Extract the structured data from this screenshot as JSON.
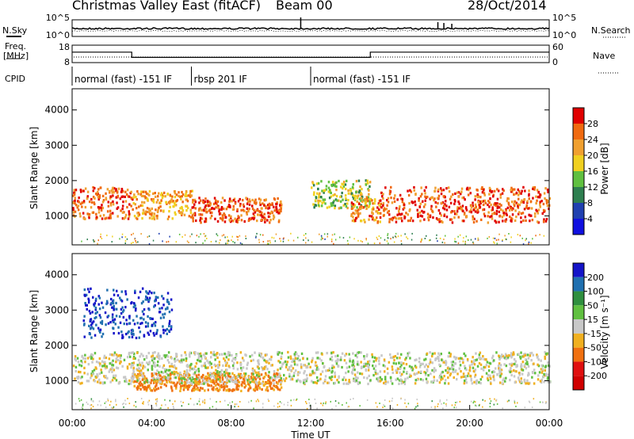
{
  "header": {
    "station": "Christmas Valley East (fitACF)",
    "beam": "Beam 00",
    "date": "28/Oct/2014"
  },
  "noise_panel": {
    "left_label": "N.Sky",
    "right_label": "N.Search",
    "y_ticks_left": [
      "10^5",
      "10^0"
    ],
    "y_ticks_right": [
      "10^5",
      "10^0"
    ]
  },
  "freq_panel": {
    "left_label": "Freq.",
    "left_unit": "[MHz]",
    "right_label": "Nave",
    "y_ticks_left": [
      "18",
      "8"
    ],
    "y_ticks_right": [
      "60",
      "0"
    ]
  },
  "cpid": {
    "label": "CPID",
    "segments": [
      {
        "text": "normal (fast) -151 IF",
        "start_h": 0,
        "end_h": 6
      },
      {
        "text": "rbsp 201 IF",
        "start_h": 6,
        "end_h": 12
      },
      {
        "text": "normal (fast) -151 IF",
        "start_h": 12,
        "end_h": 24
      }
    ]
  },
  "power_panel": {
    "ylabel": "Slant Range [km]",
    "y_ticks": [
      "1000",
      "2000",
      "3000",
      "4000"
    ],
    "colorbar_label": "Power [dB]",
    "colorbar_ticks": [
      "4",
      "8",
      "12",
      "16",
      "20",
      "24",
      "28"
    ],
    "colorbar_colors": [
      "#1010e0",
      "#2040b0",
      "#2e7f50",
      "#60c040",
      "#f0d020",
      "#f0a030",
      "#f06a10",
      "#e00000"
    ]
  },
  "velocity_panel": {
    "ylabel": "Slant Range [km]",
    "y_ticks": [
      "1000",
      "2000",
      "3000",
      "4000"
    ],
    "colorbar_label": "Velocity [m s⁻¹]",
    "colorbar_ticks": [
      "200",
      "100",
      "50",
      "15",
      "-15",
      "-50",
      "-100",
      "-200"
    ],
    "colorbar_colors": [
      "#1414c8",
      "#2070b0",
      "#2f8f3f",
      "#60c040",
      "#c8c8c8",
      "#f0b020",
      "#f07010",
      "#e01010",
      "#d00000"
    ]
  },
  "x_axis": {
    "ticks": [
      "00:00",
      "04:00",
      "08:00",
      "12:00",
      "16:00",
      "20:00",
      "00:00"
    ],
    "label": "Time UT"
  },
  "chart_data": {
    "type": "heatmap",
    "title": "Christmas Valley East (fitACF) Beam 00 28/Oct/2014",
    "xlabel": "Time UT",
    "ylabel": "Slant Range [km]",
    "xlim": [
      0,
      24
    ],
    "ylim": [
      180,
      4600
    ],
    "x_ticks": [
      "00:00",
      "04:00",
      "08:00",
      "12:00",
      "16:00",
      "20:00",
      "00:00"
    ],
    "panels": [
      "Power [dB]",
      "Velocity [m s⁻¹]"
    ],
    "frequency_mhz_estimate": [
      {
        "start_h": 0,
        "end_h": 3,
        "value": 14
      },
      {
        "start_h": 3,
        "end_h": 15,
        "value": 11
      },
      {
        "start_h": 15,
        "end_h": 24,
        "value": 14
      }
    ],
    "power_regions": [
      {
        "start_h": 0.0,
        "end_h": 3.0,
        "range_km": [
          900,
          1800
        ],
        "db": 26
      },
      {
        "start_h": 3.0,
        "end_h": 6.0,
        "range_km": [
          900,
          1700
        ],
        "db": 22
      },
      {
        "start_h": 6.0,
        "end_h": 10.5,
        "range_km": [
          800,
          1500
        ],
        "db": 27
      },
      {
        "start_h": 12.0,
        "end_h": 15.0,
        "range_km": [
          1200,
          2000
        ],
        "db": 16
      },
      {
        "start_h": 14.0,
        "end_h": 15.5,
        "range_km": [
          800,
          1500
        ],
        "db": 24
      },
      {
        "start_h": 15.5,
        "end_h": 24.0,
        "range_km": [
          800,
          1800
        ],
        "db": 27
      }
    ],
    "velocity_regions": [
      {
        "start_h": 0.5,
        "end_h": 5.0,
        "range_km": [
          2200,
          3600
        ],
        "ms": 150
      },
      {
        "start_h": 3.0,
        "end_h": 10.5,
        "range_km": [
          700,
          1200
        ],
        "ms": -60
      },
      {
        "start_h": 0.0,
        "end_h": 24.0,
        "range_km": [
          900,
          1800
        ],
        "ms": 0
      }
    ]
  }
}
